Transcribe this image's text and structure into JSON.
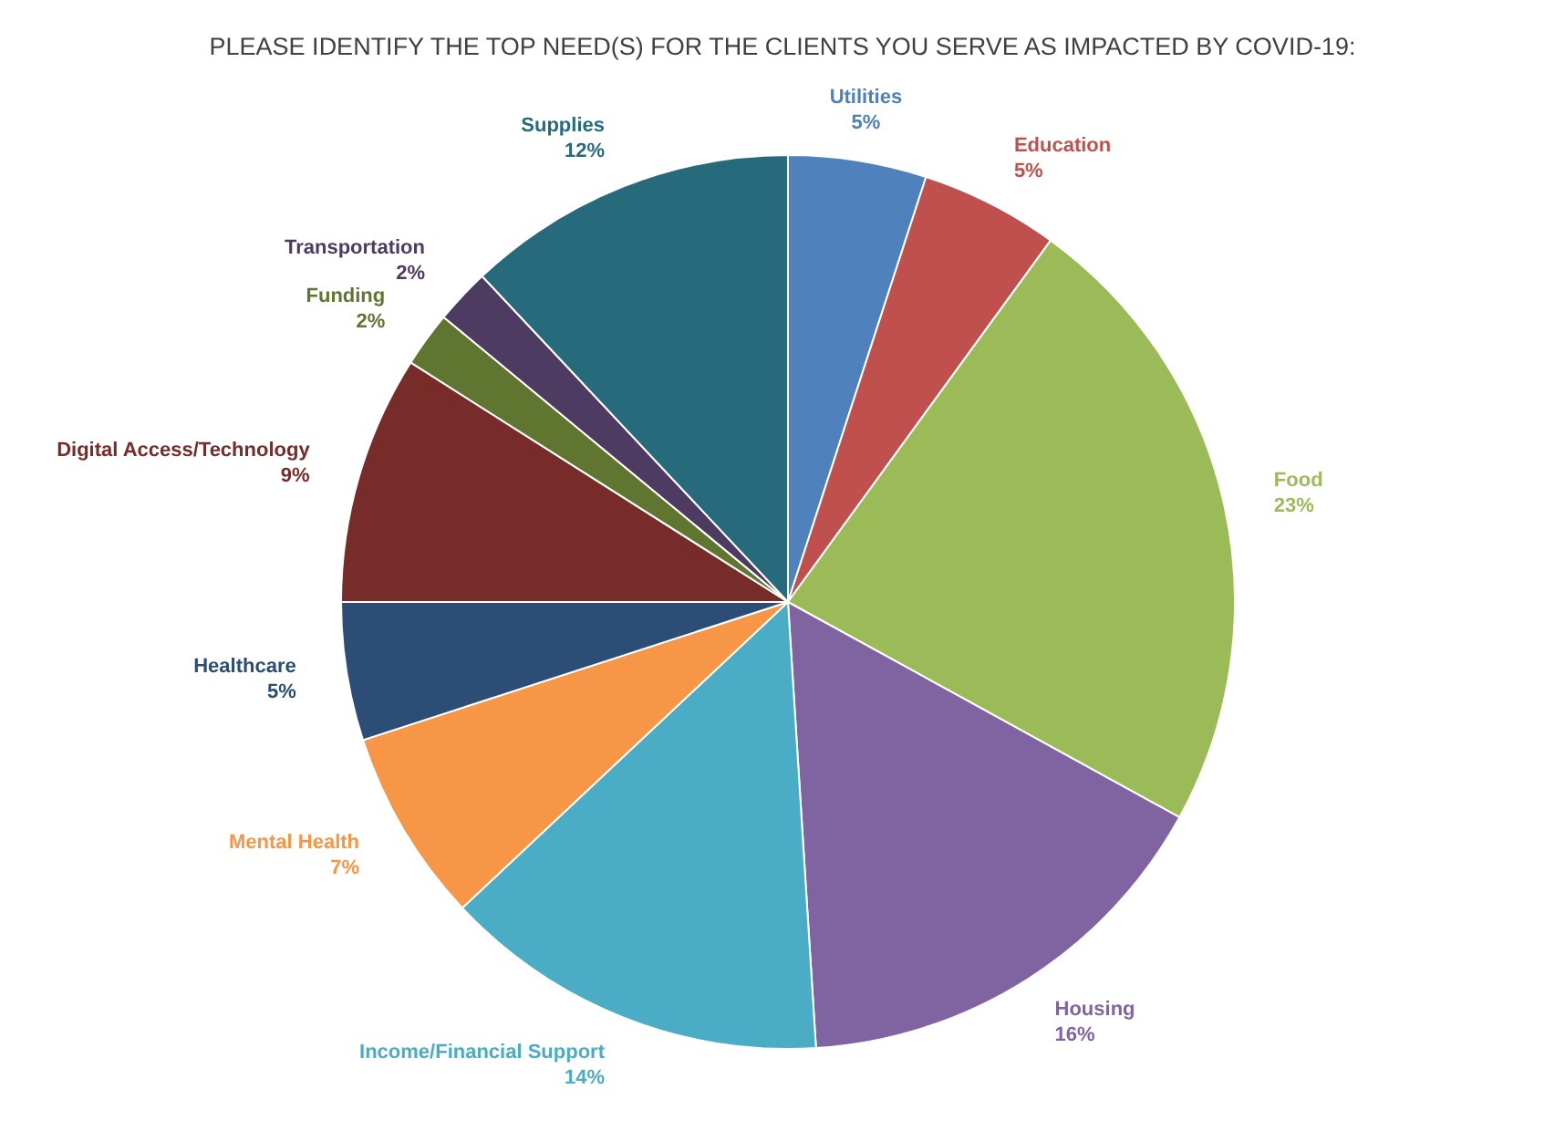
{
  "chart_data": {
    "type": "pie",
    "title": "PLEASE IDENTIFY THE TOP NEED(S) FOR THE CLIENTS YOU SERVE AS IMPACTED BY COVID-19:",
    "categories": [
      "Utilities",
      "Education",
      "Food",
      "Housing",
      "Income/Financial Support",
      "Mental Health",
      "Healthcare",
      "Digital Access/Technology",
      "Funding",
      "Transportation",
      "Supplies"
    ],
    "values": [
      5,
      5,
      23,
      16,
      14,
      7,
      5,
      9,
      2,
      2,
      12
    ],
    "value_labels": [
      "5%",
      "5%",
      "23%",
      "16%",
      "14%",
      "7%",
      "5%",
      "9%",
      "2%",
      "2%",
      "12%"
    ],
    "colors": [
      "#4f81bd",
      "#c0504d",
      "#9bbb59",
      "#8064a2",
      "#4bacc6",
      "#f79646",
      "#2c4d75",
      "#772c2a",
      "#5f7530",
      "#4d3b62",
      "#276a7c"
    ],
    "legend": false
  }
}
